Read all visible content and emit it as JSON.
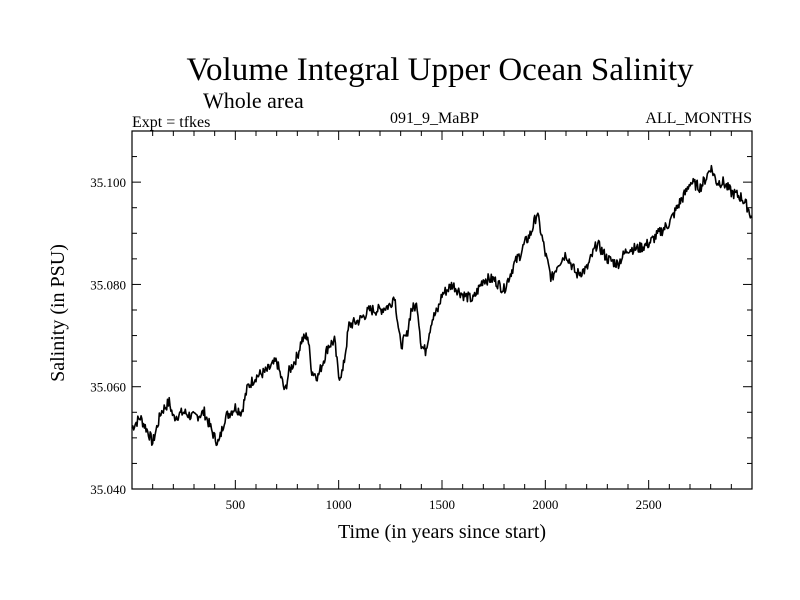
{
  "header": {
    "title": "Volume Integral Upper Ocean Salinity",
    "subtitle": "Whole area",
    "expt_label": "Expt = tfkes",
    "run_id": "091_9_MaBP",
    "period": "ALL_MONTHS"
  },
  "chart_data": {
    "type": "line",
    "title": "Volume Integral Upper Ocean Salinity",
    "xlabel": "Time (in years since start)",
    "ylabel": "Salinity (in PSU)",
    "xlim": [
      0,
      3000
    ],
    "ylim": [
      35.04,
      35.11
    ],
    "x_ticks": [
      500,
      1000,
      1500,
      2000,
      2500
    ],
    "x_tick_labels": [
      "500",
      "1000",
      "1500",
      "2000",
      "2500"
    ],
    "y_ticks": [
      35.04,
      35.06,
      35.08,
      35.1
    ],
    "y_tick_labels": [
      "35.040",
      "35.060",
      "35.080",
      "35.100"
    ],
    "grid": false,
    "line_color": "#000000",
    "series": [
      {
        "x": [
          0,
          40,
          80,
          100,
          140,
          180,
          200,
          250,
          300,
          350,
          400,
          420,
          450,
          500,
          530,
          560,
          600,
          650,
          700,
          740,
          760,
          800,
          820,
          850,
          870,
          900,
          950,
          980,
          1000,
          1020,
          1050,
          1100,
          1150,
          1200,
          1250,
          1270,
          1300,
          1330,
          1350,
          1380,
          1400,
          1420,
          1450,
          1480,
          1500,
          1550,
          1600,
          1650,
          1700,
          1750,
          1800,
          1850,
          1880,
          1900,
          1930,
          1960,
          1980,
          2000,
          2030,
          2060,
          2080,
          2100,
          2150,
          2200,
          2250,
          2300,
          2350,
          2400,
          2450,
          2500,
          2550,
          2600,
          2650,
          2680,
          2700,
          2750,
          2780,
          2800,
          2830,
          2860,
          2900,
          2950,
          2980,
          3000
        ],
        "y": [
          35.052,
          35.054,
          35.051,
          35.049,
          35.055,
          35.057,
          35.054,
          35.055,
          35.054,
          35.055,
          35.05,
          35.049,
          35.054,
          35.056,
          35.055,
          35.06,
          35.062,
          35.063,
          35.065,
          35.059,
          35.063,
          35.066,
          35.069,
          35.07,
          35.063,
          35.062,
          35.068,
          35.069,
          35.062,
          35.063,
          35.072,
          35.073,
          35.075,
          35.075,
          35.076,
          35.078,
          35.068,
          35.07,
          35.075,
          35.076,
          35.068,
          35.067,
          35.073,
          35.075,
          35.078,
          35.08,
          35.078,
          35.077,
          35.081,
          35.081,
          35.079,
          35.084,
          35.086,
          35.088,
          35.09,
          35.094,
          35.09,
          35.086,
          35.081,
          35.084,
          35.085,
          35.086,
          35.082,
          35.083,
          35.088,
          35.085,
          35.084,
          35.087,
          35.087,
          35.088,
          35.09,
          35.092,
          35.096,
          35.098,
          35.1,
          35.099,
          35.101,
          35.103,
          35.1,
          35.1,
          35.098,
          35.097,
          35.095,
          35.093
        ]
      }
    ]
  }
}
